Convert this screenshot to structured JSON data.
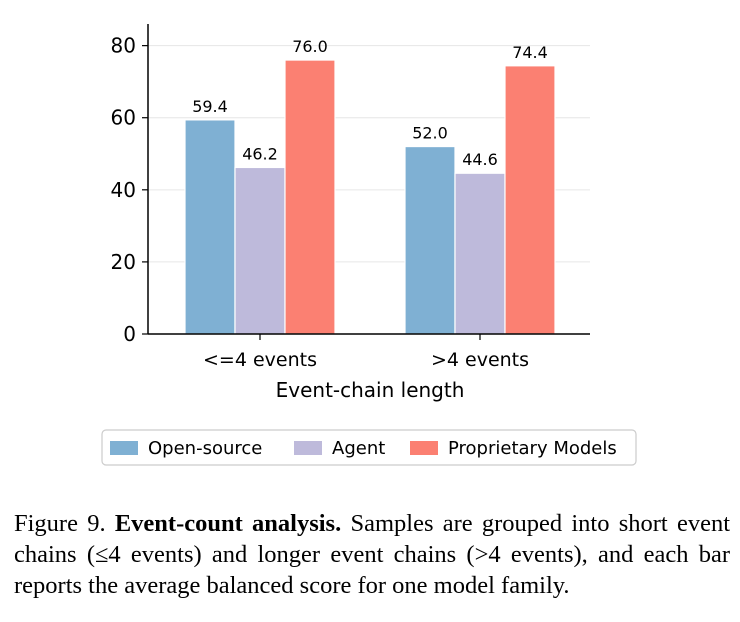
{
  "chart_data": {
    "type": "bar",
    "categories": [
      "<=4 events",
      ">4 events"
    ],
    "series": [
      {
        "name": "Open-source",
        "values": [
          59.4,
          52.0
        ],
        "labels": [
          "59.4",
          "52.0"
        ],
        "color": "#7fb0d3"
      },
      {
        "name": "Agent",
        "values": [
          46.2,
          44.6
        ],
        "labels": [
          "46.2",
          "44.6"
        ],
        "color": "#bebadb"
      },
      {
        "name": "Proprietary Models",
        "values": [
          76.0,
          74.4
        ],
        "labels": [
          "76.0",
          "74.4"
        ],
        "color": "#fb8072"
      }
    ],
    "title": "",
    "xlabel": "Event-chain length",
    "ylabel": "",
    "ylim": [
      0,
      86
    ],
    "yticks": [
      0,
      20,
      40,
      60,
      80
    ],
    "grid": "horizontal",
    "legend_position": "bottom"
  },
  "caption": {
    "label": "Figure 9.",
    "bold_title": "Event-count analysis.",
    "text": "Samples are grouped into short event chains (≤4 events) and longer event chains (>4 events), and each bar reports the average balanced score for one model family."
  }
}
